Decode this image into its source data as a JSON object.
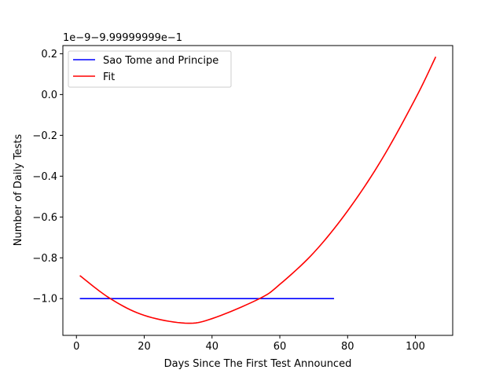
{
  "chart_data": {
    "type": "line",
    "title": "",
    "xlabel": "Days Since The First Test Announced",
    "ylabel": "Number of Daily Tests",
    "offset_text": "1e−9−9.99999999e−1",
    "xlim": [
      -4,
      111
    ],
    "ylim": [
      -1.18,
      0.24
    ],
    "x_ticks": [
      0,
      20,
      40,
      60,
      80,
      100
    ],
    "x_tick_labels": [
      "0",
      "20",
      "40",
      "60",
      "80",
      "100"
    ],
    "y_ticks": [
      -1.0,
      -0.8,
      -0.6,
      -0.4,
      -0.2,
      0.0,
      0.2
    ],
    "y_tick_labels": [
      "−1.0",
      "−0.8",
      "−0.6",
      "−0.4",
      "−0.2",
      "0.0",
      "0.2"
    ],
    "grid": false,
    "legend_position": "top-left",
    "series": [
      {
        "name": "Sao Tome and Principe",
        "color": "#0000ff",
        "x": [
          1,
          76
        ],
        "y": [
          -1.0,
          -1.0
        ]
      },
      {
        "name": "Fit",
        "color": "#ff0000",
        "x": [
          1,
          10,
          20,
          32,
          40,
          54,
          60,
          70,
          80,
          90,
          100,
          106
        ],
        "y": [
          -0.887,
          -1.0,
          -1.082,
          -1.12,
          -1.098,
          -1.0,
          -0.93,
          -0.775,
          -0.57,
          -0.32,
          -0.02,
          0.185
        ]
      }
    ]
  }
}
